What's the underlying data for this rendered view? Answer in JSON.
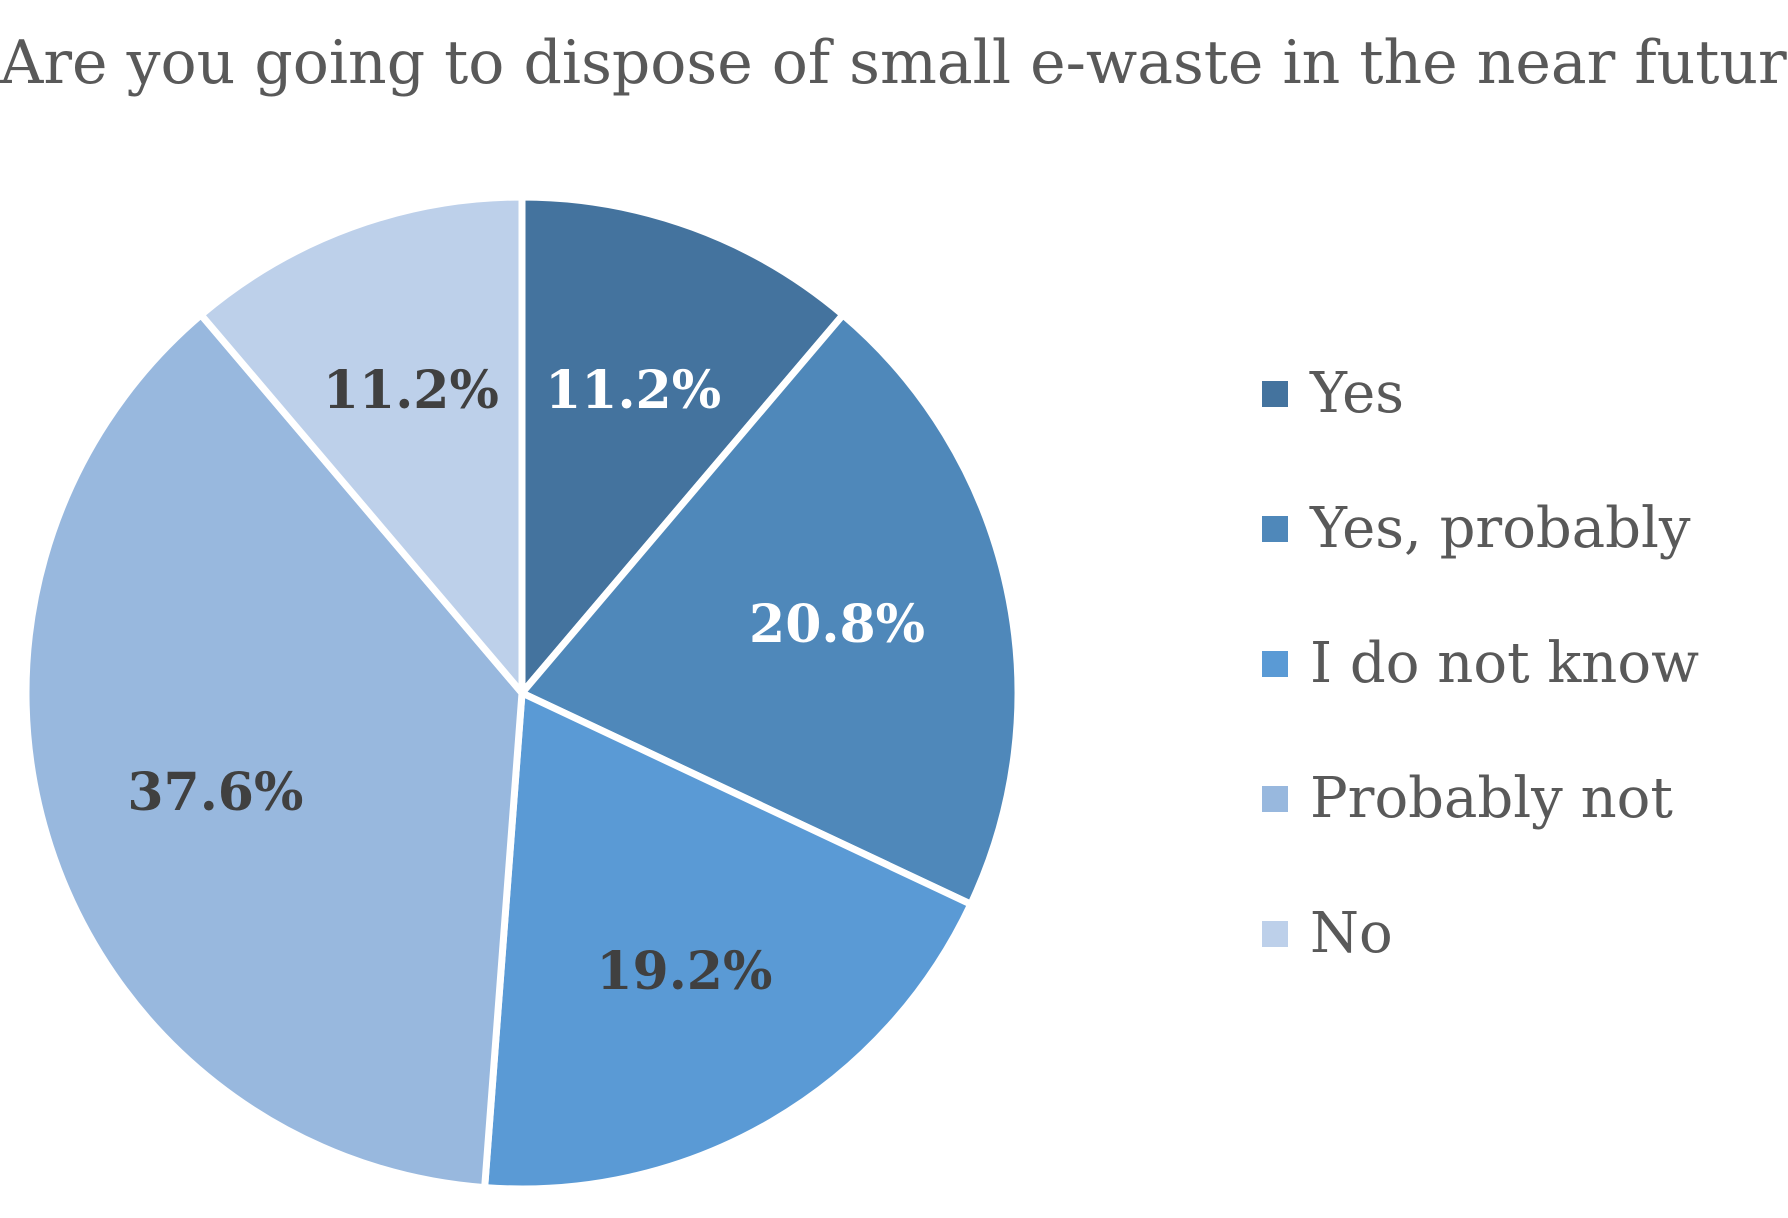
{
  "chart_data": {
    "type": "pie",
    "title": "Are you going to dispose of small e-waste in the near future?",
    "categories": [
      "Yes",
      "Yes, probably",
      "I do not know",
      "Probably not",
      "No"
    ],
    "values": [
      11.2,
      20.8,
      19.2,
      37.6,
      11.2
    ],
    "data_labels": [
      "11.2%",
      "20.8%",
      "19.2%",
      "37.6%",
      "11.2%"
    ],
    "colors": [
      "#44739E",
      "#4F88BA",
      "#5A9AD5",
      "#98B8DE",
      "#BDD0EA"
    ],
    "label_colors": [
      "#FFFFFF",
      "#FFFFFF",
      "#404040",
      "#404040",
      "#404040"
    ],
    "legend_position": "right",
    "start_angle_deg": 0,
    "direction": "clockwise"
  }
}
